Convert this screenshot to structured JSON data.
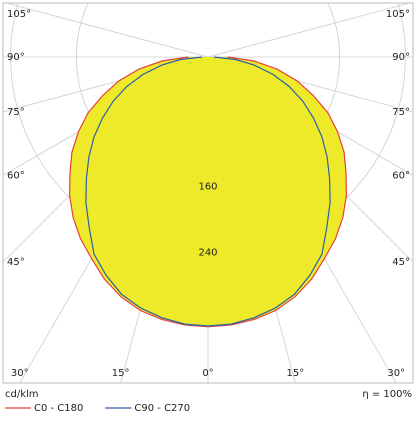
{
  "chart_data": {
    "type": "polar",
    "unit_label": "cd/klm",
    "efficiency_label": "η = 100%",
    "angles": [
      0,
      5,
      10,
      15,
      20,
      25,
      30,
      35,
      40,
      45,
      50,
      55,
      60,
      65,
      70,
      75,
      80,
      85,
      90
    ],
    "series": [
      {
        "name": "C0 - C180",
        "color": "#e8403a",
        "fill": "#eeea2a",
        "values": [
          328,
          327,
          324,
          319,
          310,
          298,
          283,
          270,
          255,
          238,
          219,
          202,
          182,
          161,
          136,
          112,
          85,
          56,
          24
        ]
      },
      {
        "name": "C90 - C270",
        "color": "#2a5fa8",
        "values": [
          327,
          326,
          322,
          316,
          307,
          293,
          277,
          252,
          231,
          209,
          189,
          169,
          148,
          127,
          105,
          82,
          57,
          33,
          7
        ]
      }
    ],
    "rlim": [
      0,
      400
    ],
    "rticks": [
      160,
      240
    ],
    "angle_ticks": [
      {
        "value": -105,
        "label": "105°"
      },
      {
        "value": -90,
        "label": "90°"
      },
      {
        "value": -75,
        "label": "75°"
      },
      {
        "value": -60,
        "label": "60°"
      },
      {
        "value": -45,
        "label": "45°"
      },
      {
        "value": -30,
        "label": "30°"
      },
      {
        "value": -15,
        "label": "15°"
      },
      {
        "value": 0,
        "label": "0°"
      },
      {
        "value": 15,
        "label": "15°"
      },
      {
        "value": 30,
        "label": "30°"
      },
      {
        "value": 45,
        "label": "45°"
      },
      {
        "value": 60,
        "label": "60°"
      },
      {
        "value": 75,
        "label": "75°"
      },
      {
        "value": 90,
        "label": "90°"
      },
      {
        "value": 105,
        "label": "105°"
      }
    ],
    "grid": true
  }
}
